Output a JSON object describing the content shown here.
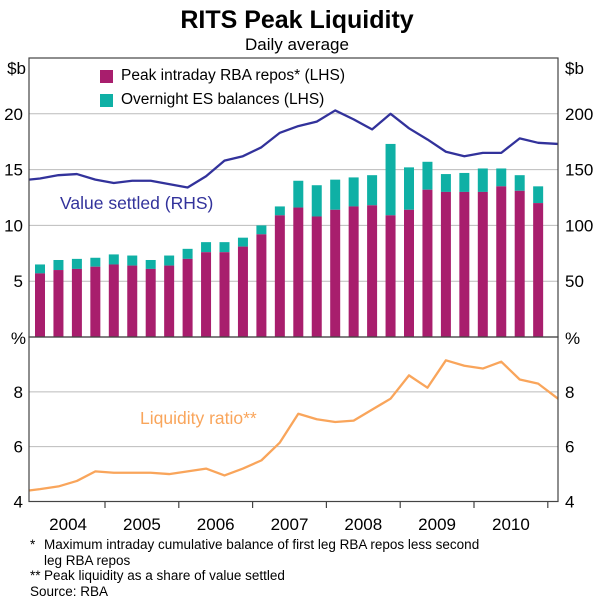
{
  "title": "RITS Peak Liquidity",
  "subtitle": "Daily average",
  "legend": {
    "items": [
      {
        "label": "Peak intraday RBA repos* (LHS)",
        "color_key": "repos"
      },
      {
        "label": "Overnight ES balances (LHS)",
        "color_key": "es"
      }
    ]
  },
  "labels": {
    "value_settled": "Value settled (RHS)",
    "liquidity_ratio": "Liquidity ratio**"
  },
  "axis_units": {
    "top_left": "$b",
    "top_right": "$b",
    "bottom_left": "%",
    "bottom_right": "%"
  },
  "footnotes": {
    "note1_marker": "*",
    "note1_line1": "Maximum intraday cumulative balance of first leg RBA repos less second",
    "note1_line2": "leg RBA repos",
    "note2_marker": "**",
    "note2_line": "Peak liquidity as a share of value settled",
    "source": "Source: RBA"
  },
  "colors": {
    "repos": "#A81E6D",
    "es": "#0FB0A5",
    "value_settled": "#32329B",
    "liquidity": "#F9A55B",
    "grid": "#BBBBBB",
    "border": "#444444",
    "text": "#000000"
  },
  "chart_data": [
    {
      "type": "bar",
      "panel": "top",
      "title": "RITS Peak Liquidity (top panel)",
      "categories": [
        "2004Q1",
        "2004Q2",
        "2004Q3",
        "2004Q4",
        "2005Q1",
        "2005Q2",
        "2005Q3",
        "2005Q4",
        "2006Q1",
        "2006Q2",
        "2006Q3",
        "2006Q4",
        "2007Q1",
        "2007Q2",
        "2007Q3",
        "2007Q4",
        "2008Q1",
        "2008Q2",
        "2008Q3",
        "2008Q4",
        "2009Q1",
        "2009Q2",
        "2009Q3",
        "2009Q4",
        "2010Q1",
        "2010Q2",
        "2010Q3",
        "2010Q4"
      ],
      "series": [
        {
          "name": "Peak intraday RBA repos* (LHS)",
          "unit": "$b",
          "values": [
            5.7,
            6.0,
            6.1,
            6.3,
            6.5,
            6.4,
            6.1,
            6.4,
            7.0,
            7.6,
            7.6,
            8.1,
            9.2,
            10.9,
            11.6,
            10.8,
            11.4,
            11.7,
            11.8,
            10.9,
            11.4,
            13.2,
            13.0,
            13.0,
            13.0,
            13.5,
            13.1,
            12.0
          ]
        },
        {
          "name": "Overnight ES balances (LHS)",
          "unit": "$b",
          "values": [
            0.8,
            0.9,
            0.9,
            0.8,
            0.9,
            0.9,
            0.8,
            0.9,
            0.9,
            0.9,
            0.9,
            0.8,
            0.8,
            0.8,
            2.4,
            2.8,
            2.7,
            2.6,
            2.7,
            6.4,
            3.8,
            2.5,
            1.6,
            1.7,
            2.1,
            1.6,
            1.4,
            1.5
          ]
        },
        {
          "name": "Value settled (RHS)",
          "unit": "$b",
          "axis": "right",
          "type": "line",
          "values": [
            142,
            145,
            146,
            141,
            138,
            140,
            140,
            137,
            134,
            144,
            158,
            162,
            170,
            183,
            189,
            193,
            203,
            195,
            186,
            200,
            187,
            177,
            166,
            162,
            165,
            165,
            178,
            174
          ],
          "edge_start": 141,
          "edge_end": 173
        }
      ],
      "ylim_left": [
        0,
        25
      ],
      "yticks_left": [
        5,
        10,
        15,
        20
      ],
      "ylim_right": [
        0,
        250
      ],
      "yticks_right": [
        50,
        100,
        150,
        200
      ],
      "grid": true
    },
    {
      "type": "line",
      "panel": "bottom",
      "title": "Liquidity ratio (bottom panel)",
      "categories": [
        "2004Q1",
        "2004Q2",
        "2004Q3",
        "2004Q4",
        "2005Q1",
        "2005Q2",
        "2005Q3",
        "2005Q4",
        "2006Q1",
        "2006Q2",
        "2006Q3",
        "2006Q4",
        "2007Q1",
        "2007Q2",
        "2007Q3",
        "2007Q4",
        "2008Q1",
        "2008Q2",
        "2008Q3",
        "2008Q4",
        "2009Q1",
        "2009Q2",
        "2009Q3",
        "2009Q4",
        "2010Q1",
        "2010Q2",
        "2010Q3",
        "2010Q4"
      ],
      "series": [
        {
          "name": "Liquidity ratio**",
          "unit": "%",
          "values": [
            4.45,
            4.55,
            4.75,
            5.1,
            5.05,
            5.05,
            5.05,
            5.0,
            5.1,
            5.2,
            4.95,
            5.2,
            5.5,
            6.15,
            7.2,
            7.0,
            6.9,
            6.95,
            7.35,
            7.75,
            8.6,
            8.15,
            9.15,
            8.95,
            8.85,
            9.1,
            8.45,
            8.3
          ],
          "edge_start": 4.4,
          "edge_end": 7.75
        }
      ],
      "ylim": [
        4,
        10
      ],
      "yticks": [
        4,
        6,
        8
      ],
      "grid": true
    }
  ],
  "x_axis": {
    "year_labels": [
      "2004",
      "2005",
      "2006",
      "2007",
      "2008",
      "2009",
      "2010"
    ]
  }
}
